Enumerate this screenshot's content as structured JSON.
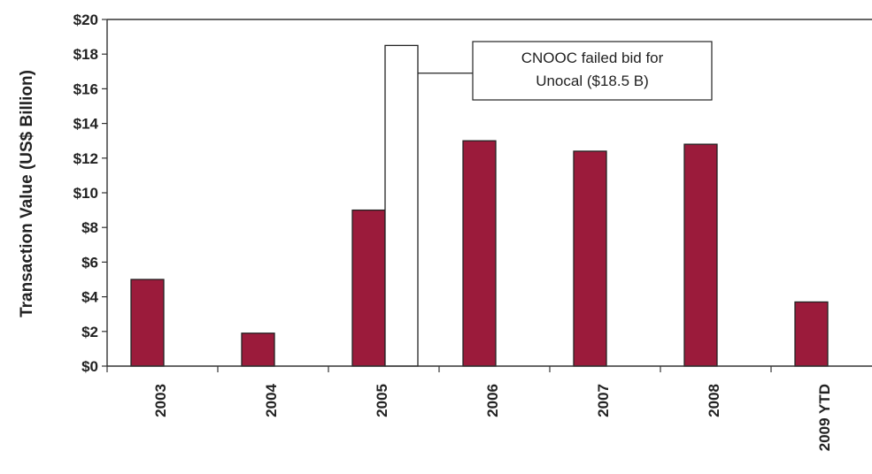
{
  "chart_data": {
    "type": "bar",
    "ylabel": "Transaction Value (US$ Billion)",
    "y_tick_prefix": "$",
    "ylim": [
      0,
      20
    ],
    "y_ticks": [
      0,
      2,
      4,
      6,
      8,
      10,
      12,
      14,
      16,
      18,
      20
    ],
    "categories": [
      "2003",
      "2004",
      "2005",
      "2006",
      "2007",
      "2008",
      "2009 YTD"
    ],
    "series": [
      {
        "values": [
          5.0,
          1.9,
          9.0,
          13.0,
          12.4,
          12.8,
          3.7
        ],
        "color": "#9b1b3b"
      },
      {
        "values": [
          null,
          null,
          18.5,
          null,
          null,
          null,
          null
        ],
        "color": "#ffffff"
      }
    ],
    "annotation": {
      "lines": [
        "CNOOC failed bid for",
        "Unocal ($18.5 B)"
      ]
    },
    "grid": false,
    "legend": "none"
  }
}
